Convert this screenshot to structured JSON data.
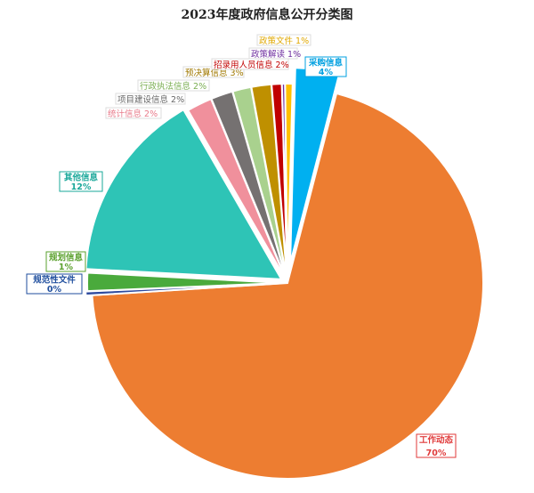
{
  "chart_data": {
    "type": "pie",
    "title": "2023年度政府信息公开分类图",
    "slices": [
      {
        "name": "采购信息",
        "value": 4,
        "label": "4%",
        "color": "#00b0f0"
      },
      {
        "name": "工作动态",
        "value": 70,
        "label": "70%",
        "color": "#ed7d31"
      },
      {
        "name": "规范性文件",
        "value": 0,
        "label": "0%",
        "color": "#2e4a9e"
      },
      {
        "name": "规划信息",
        "value": 1,
        "label": "1%",
        "color": "#4aaa3c"
      },
      {
        "name": "其他信息",
        "value": 12,
        "label": "12%",
        "color": "#2ec4b6"
      },
      {
        "name": "统计信息",
        "value": 2,
        "label": "2%",
        "color": "#f0909c"
      },
      {
        "name": "项目建设信息",
        "value": 2,
        "label": "2%",
        "color": "#757171"
      },
      {
        "name": "行政执法信息",
        "value": 2,
        "label": "2%",
        "color": "#a9d18e"
      },
      {
        "name": "预决算信息",
        "value": 3,
        "label": "3%",
        "color": "#bf9000"
      },
      {
        "name": "招录用人员信息",
        "value": 2,
        "label": "2%",
        "color": "#c00000"
      },
      {
        "name": "政策解读",
        "value": 1,
        "label": "1%",
        "color": "#7030a0"
      },
      {
        "name": "政策文件",
        "value": 1,
        "label": "1%",
        "color": "#ffc000"
      }
    ]
  }
}
